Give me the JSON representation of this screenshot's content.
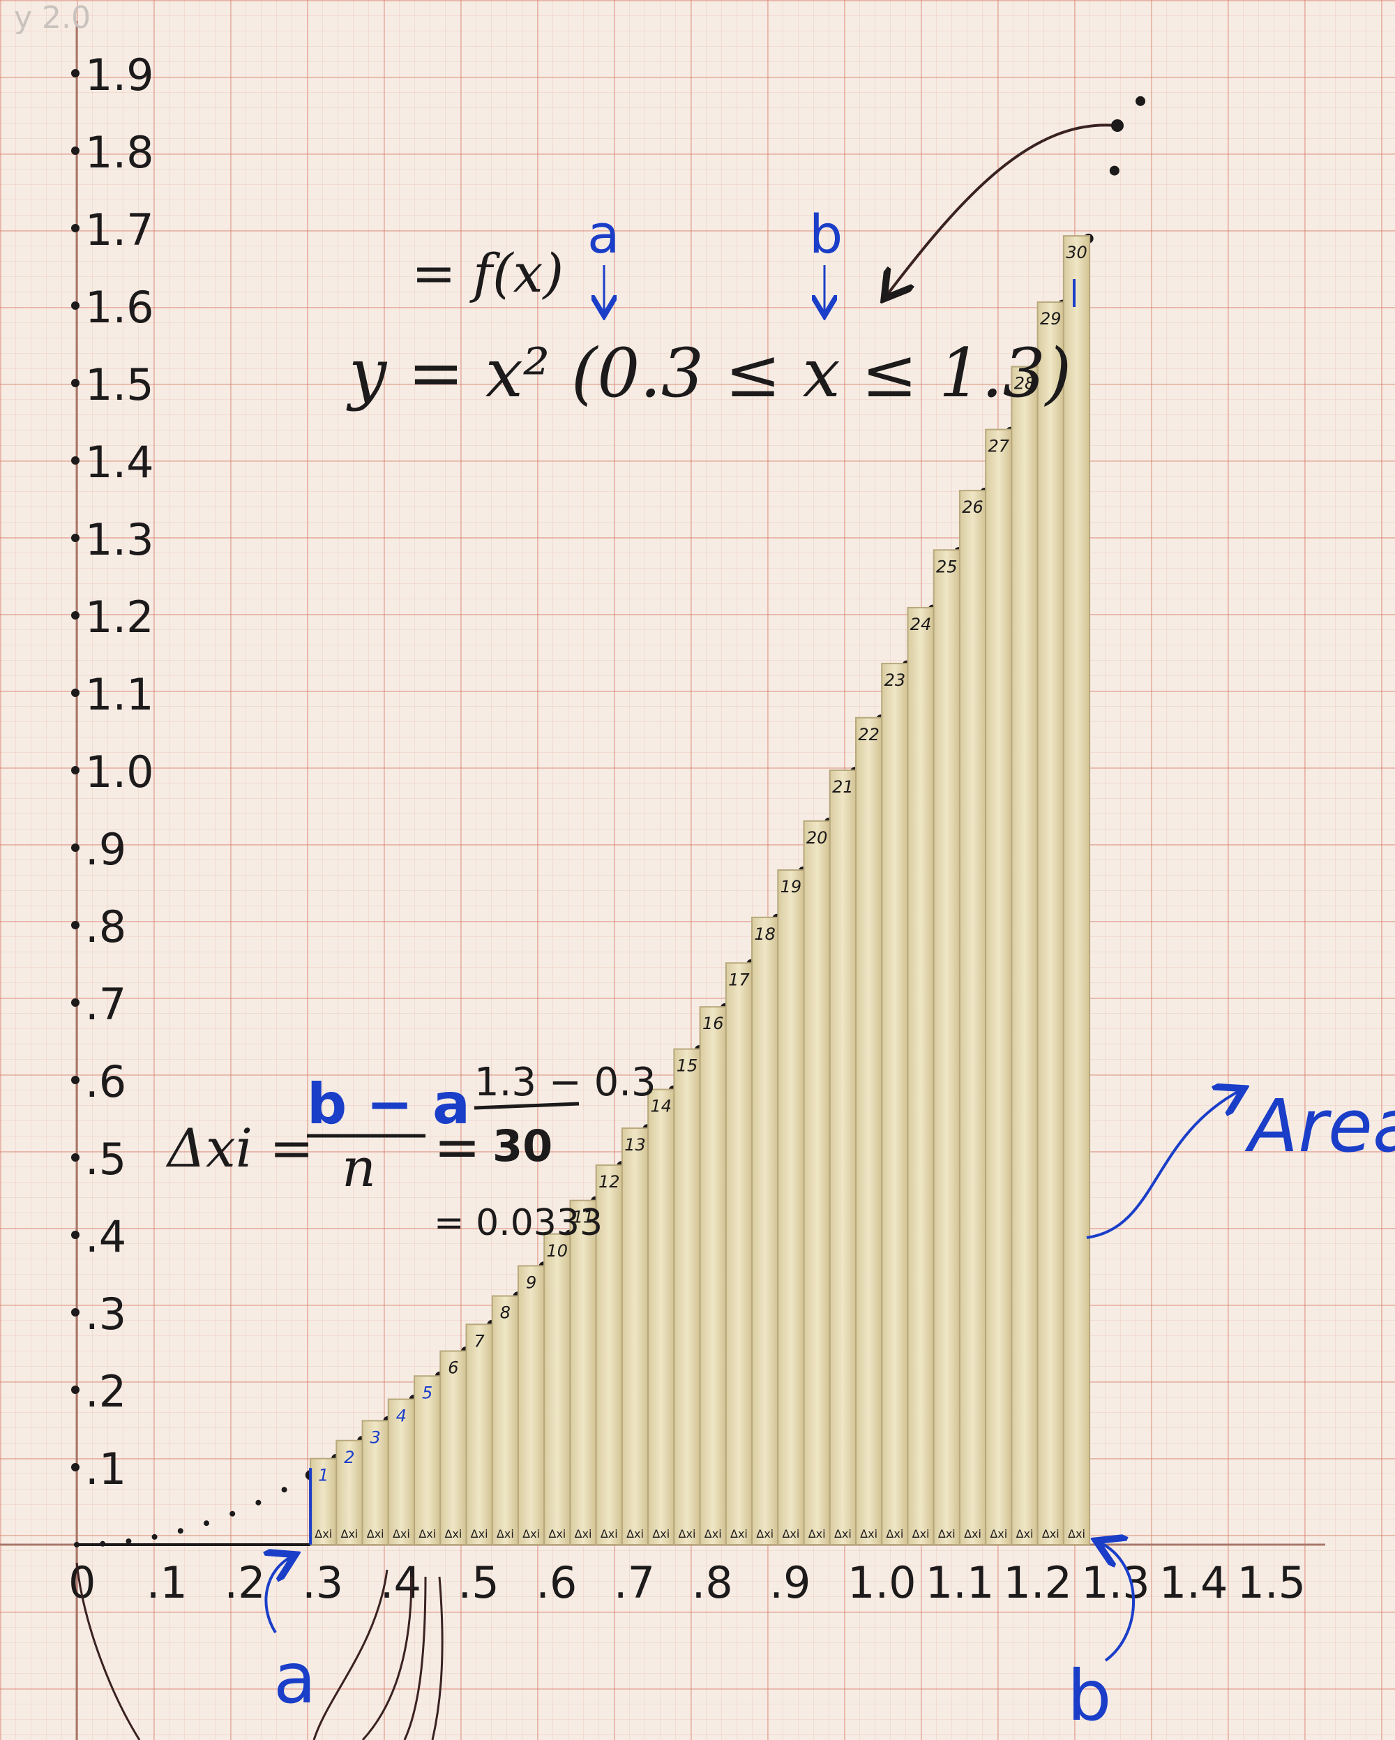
{
  "chart_data": {
    "type": "bar",
    "y_tick_labels": [
      "1.9",
      "1.8",
      "1.7",
      "1.6",
      "1.5",
      "1.4",
      "1.3",
      "1.2",
      "1.1",
      "1.0",
      ".9",
      ".8",
      ".7",
      ".6",
      ".5",
      ".4",
      ".3",
      ".2",
      ".1"
    ],
    "x_tick_labels": [
      "0",
      ".1",
      ".2",
      ".3",
      ".4",
      ".5",
      ".6",
      ".7",
      ".8",
      ".9",
      "1.0",
      "1.1",
      "1.2",
      "1.3",
      "1.4",
      "1.5"
    ],
    "bar_numbers": [
      "1",
      "2",
      "3",
      "4",
      "5",
      "6",
      "7",
      "8",
      "9",
      "10",
      "11",
      "12",
      "13",
      "14",
      "15",
      "16",
      "17",
      "18",
      "19",
      "20",
      "21",
      "22",
      "23",
      "24",
      "25",
      "26",
      "27",
      "28",
      "29",
      "30"
    ],
    "bar_base_label": "Δxi",
    "function": "y = x²",
    "xlim": [
      0,
      1.5
    ],
    "ylim": [
      0,
      1.9
    ],
    "a": 0.3,
    "b": 1.3,
    "n": 30
  },
  "annotations": {
    "equation_top": "= f(x)",
    "equation_main": "y = x² (0.3 ≤ x ≤ 1.3)",
    "a_label": "a",
    "b_label": "b",
    "delta_lhs": "Δxi =",
    "delta_fraction_num": "b − a",
    "delta_fraction_den": "n",
    "delta_eq": "=",
    "delta_num2": "1.3 − 0.3",
    "delta_den2": "30",
    "delta_result": "= 0.0333",
    "area_label": "Area",
    "faded_top_label": "y 2.0"
  },
  "colors": {
    "ink": "#1c1a1a",
    "blue_ink": "#1a3ec8",
    "bar_fill": "#e8dcb4",
    "bar_edge": "#b8a87c",
    "grid": "#d67864"
  }
}
